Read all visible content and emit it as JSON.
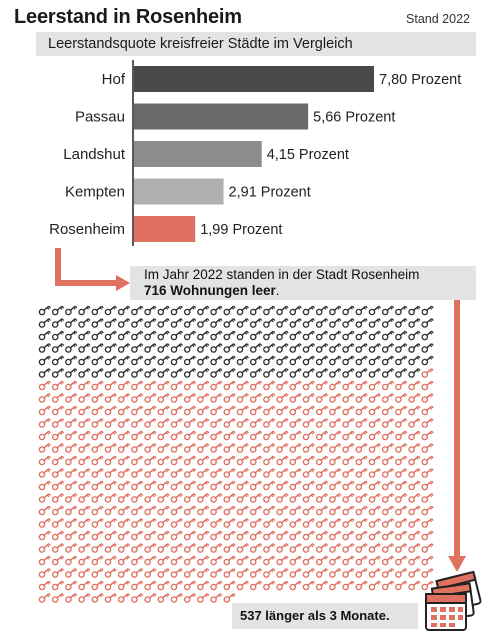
{
  "header": {
    "title": "Leerstand in Rosenheim",
    "stand": "Stand 2022",
    "subtitle": "Leerstandsquote kreisfreier Städte im Vergleich"
  },
  "chart_data": {
    "type": "bar",
    "orientation": "horizontal",
    "title": "Leerstandsquote kreisfreier Städte im Vergleich",
    "categories": [
      "Hof",
      "Passau",
      "Landshut",
      "Kempten",
      "Rosenheim"
    ],
    "values": [
      7.8,
      5.66,
      4.15,
      2.91,
      1.99
    ],
    "value_labels": [
      "7,80 Prozent",
      "5,66 Prozent",
      "4,15 Prozent",
      "2,91 Prozent",
      "1,99 Prozent"
    ],
    "bar_colors": [
      "#4a4a4a",
      "#6a6a6a",
      "#8c8c8c",
      "#b0b0b0",
      "#e07060"
    ],
    "xlim": [
      0,
      7.8
    ],
    "grid": false,
    "legend": "none"
  },
  "annotation": {
    "line1": "Im Jahr 2022 standen in der Stadt Rosenheim",
    "line2_bold": "716 Wohnungen leer",
    "line2_end": "."
  },
  "keys": {
    "total": 716,
    "long_vacancy": 537,
    "short_vacancy_color": "#333333",
    "long_vacancy_color": "#e07060",
    "icon": "key-icon"
  },
  "footer_note": "537 länger als 3 Monate.",
  "calendar_icon": "calendar-icon",
  "colors": {
    "accent": "#e07060",
    "panel": "#e3e3e3"
  }
}
